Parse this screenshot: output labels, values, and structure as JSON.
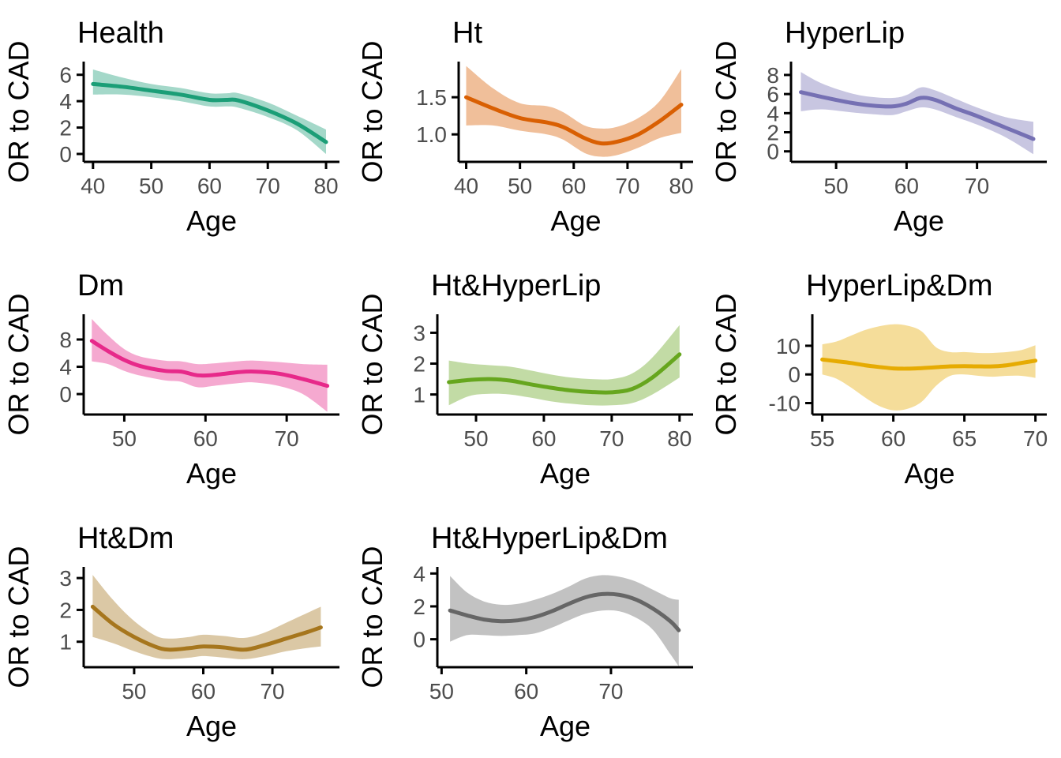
{
  "figure": {
    "xlabel": "Age",
    "ylabel": "OR to CAD",
    "axis_color": "#000000",
    "tick_label_color": "#4d4d4d",
    "title_color": "#000000",
    "ribbon_opacity": 0.4
  },
  "chart_data": [
    {
      "type": "line",
      "title": "Health",
      "xlabel": "Age",
      "ylabel": "OR to CAD",
      "color": "#1B9E77",
      "legend": "none",
      "grid": false,
      "xlim": [
        38.4,
        82.3
      ],
      "ylim": [
        -0.6,
        7.0
      ],
      "x_tick_values": [
        40,
        50,
        60,
        70,
        80
      ],
      "x_tick_labels": [
        "40",
        "50",
        "60",
        "70",
        "80"
      ],
      "y_tick_values": [
        0,
        2,
        4,
        6
      ],
      "y_tick_labels": [
        "0",
        "2",
        "4",
        "6"
      ],
      "x": [
        40,
        45,
        50,
        55,
        60,
        63,
        65,
        70,
        75,
        80
      ],
      "y": [
        5.3,
        5.1,
        4.8,
        4.5,
        4.1,
        4.1,
        4.05,
        3.3,
        2.3,
        0.9
      ],
      "lower": [
        4.5,
        4.5,
        4.3,
        4.0,
        3.6,
        3.6,
        3.5,
        2.8,
        1.8,
        0.0
      ],
      "upper": [
        6.4,
        5.8,
        5.3,
        5.0,
        4.6,
        4.6,
        4.6,
        3.9,
        2.9,
        1.85
      ]
    },
    {
      "type": "line",
      "title": "Ht",
      "xlabel": "Age",
      "ylabel": "OR to CAD",
      "color": "#D95F02",
      "legend": "none",
      "grid": false,
      "xlim": [
        38.6,
        82.2
      ],
      "ylim": [
        0.63,
        1.98
      ],
      "x_tick_values": [
        40,
        50,
        60,
        70,
        80
      ],
      "x_tick_labels": [
        "40",
        "50",
        "60",
        "70",
        "80"
      ],
      "y_tick_values": [
        1.0,
        1.5
      ],
      "y_tick_labels": [
        "1.0",
        "1.5"
      ],
      "x": [
        40,
        45,
        50,
        55,
        58,
        62,
        65,
        68,
        72,
        76,
        80
      ],
      "y": [
        1.5,
        1.35,
        1.22,
        1.16,
        1.1,
        0.95,
        0.88,
        0.9,
        1.0,
        1.18,
        1.4
      ],
      "lower": [
        1.12,
        1.12,
        1.05,
        1.0,
        0.93,
        0.75,
        0.7,
        0.72,
        0.82,
        0.95,
        1.02
      ],
      "upper": [
        1.92,
        1.62,
        1.42,
        1.38,
        1.3,
        1.12,
        1.08,
        1.1,
        1.22,
        1.45,
        1.88
      ]
    },
    {
      "type": "line",
      "title": "HyperLip",
      "xlabel": "Age",
      "ylabel": "OR to CAD",
      "color": "#7570B3",
      "legend": "none",
      "grid": false,
      "xlim": [
        43.6,
        79.9
      ],
      "ylim": [
        -1.1,
        9.4
      ],
      "x_tick_values": [
        50,
        60,
        70
      ],
      "x_tick_labels": [
        "50",
        "60",
        "70"
      ],
      "y_tick_values": [
        0,
        2,
        4,
        6,
        8
      ],
      "y_tick_labels": [
        "0",
        "2",
        "4",
        "6",
        "8"
      ],
      "x": [
        45,
        48,
        52,
        55,
        58,
        60,
        62,
        64,
        67,
        70,
        74,
        78
      ],
      "y": [
        6.2,
        5.7,
        5.1,
        4.8,
        4.7,
        5.0,
        5.6,
        5.4,
        4.5,
        3.7,
        2.5,
        1.3
      ],
      "lower": [
        4.2,
        4.4,
        4.1,
        3.9,
        3.8,
        4.2,
        4.6,
        4.4,
        3.6,
        2.8,
        1.5,
        -0.3
      ],
      "upper": [
        8.3,
        7.1,
        6.1,
        5.7,
        5.6,
        5.9,
        6.7,
        6.4,
        5.5,
        4.6,
        3.6,
        3.1
      ]
    },
    {
      "type": "line",
      "title": "Dm",
      "xlabel": "Age",
      "ylabel": "OR to CAD",
      "color": "#E7298A",
      "legend": "none",
      "grid": false,
      "xlim": [
        45.0,
        76.5
      ],
      "ylim": [
        -3.0,
        11.7
      ],
      "x_tick_values": [
        50,
        60,
        70
      ],
      "x_tick_labels": [
        "50",
        "60",
        "70"
      ],
      "y_tick_values": [
        0,
        4,
        8
      ],
      "y_tick_labels": [
        "0",
        "4",
        "8"
      ],
      "x": [
        46,
        48,
        50,
        52,
        55,
        57,
        59,
        61,
        64,
        66,
        69,
        72,
        75
      ],
      "y": [
        7.8,
        6.3,
        5.0,
        4.1,
        3.4,
        3.3,
        2.75,
        2.8,
        3.2,
        3.3,
        3.0,
        2.2,
        1.2
      ],
      "lower": [
        4.8,
        4.4,
        3.4,
        2.7,
        2.0,
        1.8,
        1.0,
        1.2,
        1.6,
        1.7,
        1.2,
        0.0,
        -2.6
      ],
      "upper": [
        11.0,
        8.6,
        6.6,
        5.5,
        4.9,
        4.8,
        4.4,
        4.5,
        4.8,
        4.9,
        4.7,
        4.4,
        4.3
      ]
    },
    {
      "type": "line",
      "title": "Ht&HyperLip",
      "xlabel": "Age",
      "ylabel": "OR to CAD",
      "color": "#66A61E",
      "legend": "none",
      "grid": false,
      "xlim": [
        44.3,
        82.0
      ],
      "ylim": [
        0.35,
        3.6
      ],
      "x_tick_values": [
        50,
        60,
        70,
        80
      ],
      "x_tick_labels": [
        "50",
        "60",
        "70",
        "80"
      ],
      "y_tick_values": [
        1,
        2,
        3
      ],
      "y_tick_labels": [
        "1",
        "2",
        "3"
      ],
      "x": [
        46,
        49,
        52,
        55,
        58,
        61,
        64,
        67,
        70,
        73,
        76,
        80
      ],
      "y": [
        1.4,
        1.47,
        1.5,
        1.45,
        1.33,
        1.22,
        1.13,
        1.08,
        1.07,
        1.18,
        1.55,
        2.3
      ],
      "lower": [
        0.65,
        0.95,
        1.02,
        1.0,
        0.9,
        0.78,
        0.7,
        0.65,
        0.65,
        0.72,
        1.0,
        1.55
      ],
      "upper": [
        2.1,
        2.0,
        1.95,
        1.9,
        1.78,
        1.65,
        1.55,
        1.5,
        1.5,
        1.68,
        2.2,
        3.25
      ]
    },
    {
      "type": "line",
      "title": "HyperLip&Dm",
      "xlabel": "Age",
      "ylabel": "OR to CAD",
      "color": "#E6AB02",
      "legend": "none",
      "grid": false,
      "xlim": [
        54.3,
        70.8
      ],
      "ylim": [
        -14.0,
        21.0
      ],
      "x_tick_values": [
        55,
        60,
        65,
        70
      ],
      "x_tick_labels": [
        "55",
        "60",
        "65",
        "70"
      ],
      "y_tick_values": [
        -10,
        0,
        10
      ],
      "y_tick_labels": [
        "-10",
        "0",
        "10"
      ],
      "x": [
        55,
        56,
        57,
        58,
        59,
        60,
        61,
        62,
        63,
        64,
        65,
        66,
        67,
        68,
        69,
        70
      ],
      "y": [
        5.2,
        4.6,
        4.0,
        3.2,
        2.6,
        2.1,
        2.0,
        2.2,
        2.5,
        2.8,
        2.9,
        2.8,
        2.8,
        3.2,
        4.0,
        4.8
      ],
      "lower": [
        0.0,
        -1.5,
        -4.5,
        -8.0,
        -11.0,
        -12.5,
        -12.0,
        -9.5,
        -4.0,
        -0.5,
        0.0,
        -0.5,
        -0.8,
        -0.5,
        -0.5,
        -1.2
      ],
      "upper": [
        10.5,
        11.5,
        13.5,
        15.5,
        16.8,
        17.5,
        17.0,
        15.0,
        9.5,
        7.8,
        7.8,
        7.5,
        7.5,
        7.8,
        8.5,
        10.2
      ]
    },
    {
      "type": "line",
      "title": "Ht&Dm",
      "xlabel": "Age",
      "ylabel": "OR to CAD",
      "color": "#A6761D",
      "legend": "none",
      "grid": false,
      "xlim": [
        42.7,
        79.7
      ],
      "ylim": [
        0.2,
        3.35
      ],
      "x_tick_values": [
        50,
        60,
        70
      ],
      "x_tick_labels": [
        "50",
        "60",
        "70"
      ],
      "y_tick_values": [
        1,
        2,
        3
      ],
      "y_tick_labels": [
        "1",
        "2",
        "3"
      ],
      "x": [
        44,
        47,
        50,
        53,
        55,
        58,
        60,
        63,
        66,
        69,
        72,
        75,
        77
      ],
      "y": [
        2.1,
        1.55,
        1.15,
        0.85,
        0.75,
        0.8,
        0.85,
        0.82,
        0.75,
        0.9,
        1.1,
        1.3,
        1.45
      ],
      "lower": [
        1.15,
        0.95,
        0.7,
        0.5,
        0.45,
        0.5,
        0.55,
        0.5,
        0.45,
        0.55,
        0.7,
        0.8,
        0.85
      ],
      "upper": [
        3.1,
        2.3,
        1.65,
        1.2,
        1.1,
        1.15,
        1.22,
        1.18,
        1.12,
        1.3,
        1.6,
        1.9,
        2.1
      ]
    },
    {
      "type": "line",
      "title": "Ht&HyperLip&Dm",
      "xlabel": "Age",
      "ylabel": "OR to CAD",
      "color": "#666666",
      "legend": "none",
      "grid": false,
      "xlim": [
        49.5,
        79.7
      ],
      "ylim": [
        -1.7,
        4.4
      ],
      "x_tick_values": [
        50,
        60,
        70
      ],
      "x_tick_labels": [
        "50",
        "60",
        "70"
      ],
      "y_tick_values": [
        0,
        2,
        4
      ],
      "y_tick_labels": [
        "0",
        "2",
        "4"
      ],
      "x": [
        51,
        53,
        55,
        57,
        59,
        61,
        63,
        65,
        67,
        69,
        71,
        73,
        75,
        77,
        78
      ],
      "y": [
        1.75,
        1.45,
        1.2,
        1.1,
        1.15,
        1.35,
        1.7,
        2.15,
        2.55,
        2.75,
        2.7,
        2.4,
        1.85,
        1.1,
        0.55
      ],
      "lower": [
        -0.15,
        0.25,
        0.25,
        0.2,
        0.25,
        0.35,
        0.7,
        1.15,
        1.55,
        1.75,
        1.7,
        1.3,
        0.55,
        -0.9,
        -1.65
      ],
      "upper": [
        3.85,
        2.85,
        2.3,
        2.1,
        2.15,
        2.4,
        2.75,
        3.2,
        3.7,
        3.9,
        3.8,
        3.5,
        3.0,
        2.5,
        2.4
      ]
    }
  ]
}
